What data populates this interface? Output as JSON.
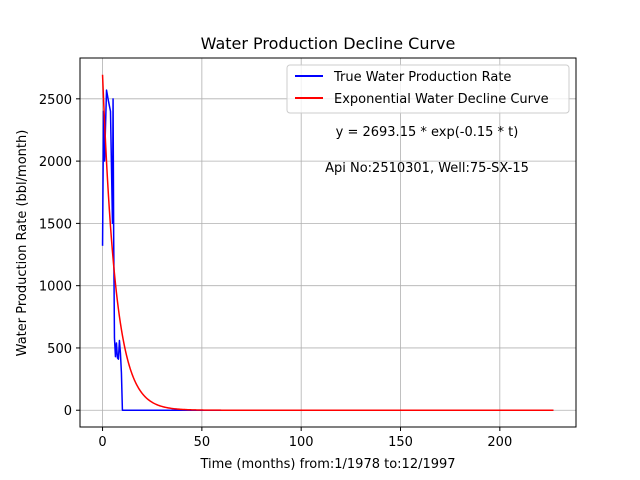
{
  "chart_data": {
    "type": "line",
    "title": "Water Production Decline Curve",
    "xlabel": "Time (months) from:1/1978 to:12/1997",
    "ylabel": "Water Production Rate (bbl/month)",
    "xlim": [
      -11.35,
      238.35
    ],
    "ylim": [
      -134.65,
      2827.8
    ],
    "xticks": [
      0,
      50,
      100,
      150,
      200
    ],
    "yticks": [
      0,
      500,
      1000,
      1500,
      2000,
      2500
    ],
    "grid": true,
    "legend_position": "top-right",
    "annotations": [
      "y = 2693.15 * exp(-0.15 * t)",
      "Api No:2510301, Well:75-SX-15"
    ],
    "series": [
      {
        "name": "True Water Production Rate",
        "color": "#0000ff",
        "x": [
          0,
          0.5,
          1,
          2,
          3,
          4,
          5,
          5.3,
          5.6,
          6,
          6.5,
          7,
          7.5,
          8,
          8.5,
          9,
          9.5,
          10,
          227
        ],
        "y": [
          1320,
          2400,
          2000,
          2570,
          2480,
          2400,
          1500,
          2500,
          1400,
          580,
          430,
          540,
          420,
          410,
          560,
          460,
          300,
          0,
          0
        ]
      },
      {
        "name": "Exponential Water Decline Curve",
        "color": "#ff0000",
        "model": {
          "a": 2693.15,
          "b": 0.15,
          "t_start": 0,
          "t_end": 227
        }
      }
    ]
  }
}
